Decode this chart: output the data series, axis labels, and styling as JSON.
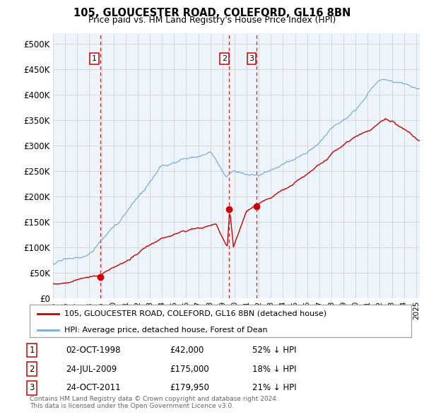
{
  "title": "105, GLOUCESTER ROAD, COLEFORD, GL16 8BN",
  "subtitle": "Price paid vs. HM Land Registry's House Price Index (HPI)",
  "yticks": [
    0,
    50000,
    100000,
    150000,
    200000,
    250000,
    300000,
    350000,
    400000,
    450000,
    500000
  ],
  "ytick_labels": [
    "£0",
    "£50K",
    "£100K",
    "£150K",
    "£200K",
    "£250K",
    "£300K",
    "£350K",
    "£400K",
    "£450K",
    "£500K"
  ],
  "xmin": 1995.0,
  "xmax": 2025.3,
  "ymin": 0,
  "ymax": 520000,
  "red_color": "#cc0000",
  "blue_color": "#7aaed4",
  "chart_bg": "#eef4fb",
  "sale_dates": [
    1998.92,
    2009.56,
    2011.81
  ],
  "sale_prices": [
    42000,
    175000,
    179950
  ],
  "sale_labels": [
    "1",
    "2",
    "3"
  ],
  "legend_red": "105, GLOUCESTER ROAD, COLEFORD, GL16 8BN (detached house)",
  "legend_blue": "HPI: Average price, detached house, Forest of Dean",
  "table_entries": [
    {
      "num": "1",
      "date": "02-OCT-1998",
      "price": "£42,000",
      "hpi": "52% ↓ HPI"
    },
    {
      "num": "2",
      "date": "24-JUL-2009",
      "price": "£175,000",
      "hpi": "18% ↓ HPI"
    },
    {
      "num": "3",
      "date": "24-OCT-2011",
      "price": "£179,950",
      "hpi": "21% ↓ HPI"
    }
  ],
  "footer": "Contains HM Land Registry data © Crown copyright and database right 2024.\nThis data is licensed under the Open Government Licence v3.0.",
  "background_color": "#ffffff",
  "grid_color": "#cccccc"
}
